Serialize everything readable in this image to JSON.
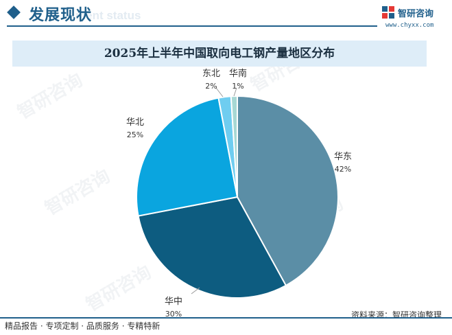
{
  "header": {
    "section_title": "发展现状",
    "section_subtitle": "ment status",
    "brand_name": "智研咨询",
    "brand_url": "www.chyxx.com"
  },
  "chart_data": {
    "type": "pie",
    "title": "2025年上半年中国取向电工钢产量地区分布",
    "slices": [
      {
        "label": "华东",
        "value": 42,
        "display": "42%",
        "color": "#5b8ea6"
      },
      {
        "label": "华中",
        "value": 30,
        "display": "30%",
        "color": "#0d5c80"
      },
      {
        "label": "华北",
        "value": 25,
        "display": "25%",
        "color": "#0aa5df"
      },
      {
        "label": "东北",
        "value": 2,
        "display": "2%",
        "color": "#6fcdf0"
      },
      {
        "label": "华南",
        "value": 1,
        "display": "1%",
        "color": "#a7d8d4"
      }
    ],
    "start": "12 o'clock",
    "direction": "clockwise"
  },
  "source": "资料来源：智研咨询整理",
  "footer": "精品报告 · 专项定制 · 品质服务 · 专精特新",
  "watermark": "智研咨询"
}
